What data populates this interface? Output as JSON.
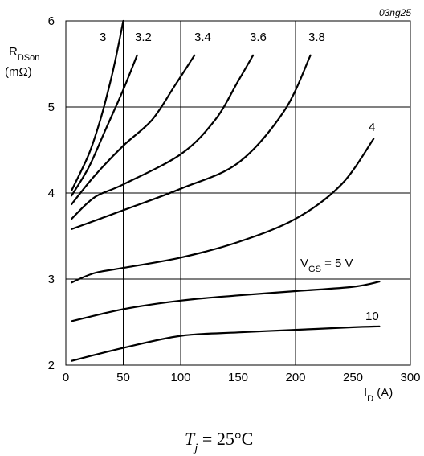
{
  "chart_data": {
    "type": "line",
    "figure_code": "03ng25",
    "condition": {
      "symbol": "T",
      "sub": "j",
      "rest": " = 25°C"
    },
    "ylabel": {
      "main": "R",
      "sub": "DSon",
      "unit": "(mΩ)"
    },
    "xlabel": {
      "main": "I",
      "sub": "D",
      "unit": " (A)"
    },
    "xlim": [
      0,
      300
    ],
    "ylim": [
      2,
      6
    ],
    "xticks": [
      "0",
      "50",
      "100",
      "150",
      "200",
      "250",
      "300"
    ],
    "yticks": [
      "2",
      "3",
      "4",
      "5",
      "6"
    ],
    "grid": true,
    "series_label_prefix": {
      "main": "V",
      "sub": "GS",
      "rest": " = 5 V"
    },
    "series": [
      {
        "name": "3",
        "x": [
          5,
          20,
          30,
          38,
          44,
          50
        ],
        "y": [
          4.03,
          4.45,
          4.85,
          5.25,
          5.6,
          6.0
        ]
      },
      {
        "name": "3.2",
        "x": [
          5,
          20,
          35,
          50,
          62
        ],
        "y": [
          3.97,
          4.3,
          4.75,
          5.2,
          5.6
        ]
      },
      {
        "name": "3.4",
        "x": [
          5,
          25,
          50,
          75,
          95,
          112
        ],
        "y": [
          3.87,
          4.2,
          4.55,
          4.85,
          5.25,
          5.6
        ]
      },
      {
        "name": "3.6",
        "x": [
          5,
          25,
          50,
          100,
          130,
          150,
          163
        ],
        "y": [
          3.7,
          3.95,
          4.1,
          4.45,
          4.85,
          5.3,
          5.6
        ]
      },
      {
        "name": "3.8",
        "x": [
          5,
          50,
          100,
          150,
          190,
          213
        ],
        "y": [
          3.58,
          3.8,
          4.05,
          4.35,
          4.95,
          5.6
        ]
      },
      {
        "name": "4",
        "x": [
          5,
          25,
          50,
          100,
          150,
          200,
          240,
          268
        ],
        "y": [
          2.96,
          3.07,
          3.13,
          3.25,
          3.43,
          3.7,
          4.1,
          4.63
        ]
      },
      {
        "name": "5",
        "x": [
          5,
          50,
          100,
          150,
          200,
          250,
          273
        ],
        "y": [
          2.51,
          2.65,
          2.75,
          2.81,
          2.86,
          2.91,
          2.97
        ]
      },
      {
        "name": "10",
        "x": [
          5,
          50,
          100,
          150,
          200,
          250,
          273
        ],
        "y": [
          2.05,
          2.2,
          2.34,
          2.38,
          2.41,
          2.44,
          2.45
        ]
      }
    ],
    "curve_labels": [
      "3",
      "3.2",
      "3.4",
      "3.6",
      "3.8",
      "4",
      "10"
    ]
  }
}
